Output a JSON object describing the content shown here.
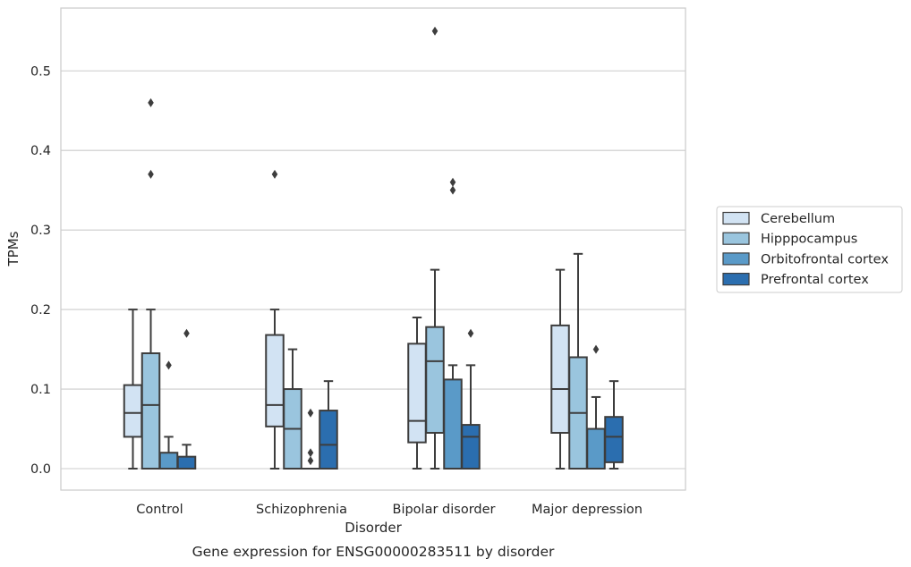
{
  "chart_data": {
    "type": "box",
    "caption": "Gene expression for ENSG00000283511 by disorder",
    "xlabel": "Disorder",
    "ylabel": "TPMs",
    "ylim": [
      -0.027,
      0.58
    ],
    "yticks": [
      0.0,
      0.1,
      0.2,
      0.3,
      0.4,
      0.5
    ],
    "ytick_labels": [
      "0.0",
      "0.1",
      "0.2",
      "0.3",
      "0.4",
      "0.5"
    ],
    "grid": "horizontal",
    "legend_position": "right",
    "categories": [
      "Control",
      "Schizophrenia",
      "Bipolar disorder",
      "Major depression"
    ],
    "series": [
      {
        "name": "Cerebellum",
        "color": "#d2e3f3",
        "boxes": [
          {
            "whisker_low": 0.0,
            "q1": 0.04,
            "median": 0.07,
            "q3": 0.105,
            "whisker_high": 0.2,
            "outliers": []
          },
          {
            "whisker_low": 0.0,
            "q1": 0.053,
            "median": 0.08,
            "q3": 0.168,
            "whisker_high": 0.2,
            "outliers": [
              0.37
            ]
          },
          {
            "whisker_low": 0.0,
            "q1": 0.033,
            "median": 0.06,
            "q3": 0.157,
            "whisker_high": 0.19,
            "outliers": []
          },
          {
            "whisker_low": 0.0,
            "q1": 0.045,
            "median": 0.1,
            "q3": 0.18,
            "whisker_high": 0.25,
            "outliers": []
          }
        ]
      },
      {
        "name": "Hipppocampus",
        "color": "#9ac5de",
        "boxes": [
          {
            "whisker_low": 0.0,
            "q1": 0.0,
            "median": 0.08,
            "q3": 0.145,
            "whisker_high": 0.2,
            "outliers": [
              0.37,
              0.46
            ]
          },
          {
            "whisker_low": 0.0,
            "q1": 0.0,
            "median": 0.05,
            "q3": 0.1,
            "whisker_high": 0.15,
            "outliers": []
          },
          {
            "whisker_low": 0.0,
            "q1": 0.045,
            "median": 0.135,
            "q3": 0.178,
            "whisker_high": 0.25,
            "outliers": [
              0.55
            ]
          },
          {
            "whisker_low": 0.0,
            "q1": 0.0,
            "median": 0.07,
            "q3": 0.14,
            "whisker_high": 0.27,
            "outliers": []
          }
        ]
      },
      {
        "name": "Orbitofrontal cortex",
        "color": "#5a9ac8",
        "boxes": [
          {
            "whisker_low": 0.0,
            "q1": 0.0,
            "median": 0.0,
            "q3": 0.02,
            "whisker_high": 0.04,
            "outliers": [
              0.13
            ]
          },
          {
            "whisker_low": 0.0,
            "q1": 0.0,
            "median": 0.0,
            "q3": 0.0,
            "whisker_high": 0.0,
            "outliers": [
              0.01,
              0.02,
              0.07
            ]
          },
          {
            "whisker_low": 0.0,
            "q1": 0.0,
            "median": 0.0,
            "q3": 0.112,
            "whisker_high": 0.13,
            "outliers": [
              0.35,
              0.36
            ]
          },
          {
            "whisker_low": 0.0,
            "q1": 0.0,
            "median": 0.0,
            "q3": 0.05,
            "whisker_high": 0.09,
            "outliers": [
              0.15
            ]
          }
        ]
      },
      {
        "name": "Prefrontal cortex",
        "color": "#2b6eaf",
        "boxes": [
          {
            "whisker_low": 0.0,
            "q1": 0.0,
            "median": 0.0,
            "q3": 0.015,
            "whisker_high": 0.03,
            "outliers": [
              0.17
            ]
          },
          {
            "whisker_low": 0.0,
            "q1": 0.0,
            "median": 0.03,
            "q3": 0.073,
            "whisker_high": 0.11,
            "outliers": []
          },
          {
            "whisker_low": 0.0,
            "q1": 0.0,
            "median": 0.04,
            "q3": 0.055,
            "whisker_high": 0.13,
            "outliers": [
              0.17
            ]
          },
          {
            "whisker_low": 0.0,
            "q1": 0.008,
            "median": 0.04,
            "q3": 0.065,
            "whisker_high": 0.11,
            "outliers": []
          }
        ]
      }
    ]
  }
}
